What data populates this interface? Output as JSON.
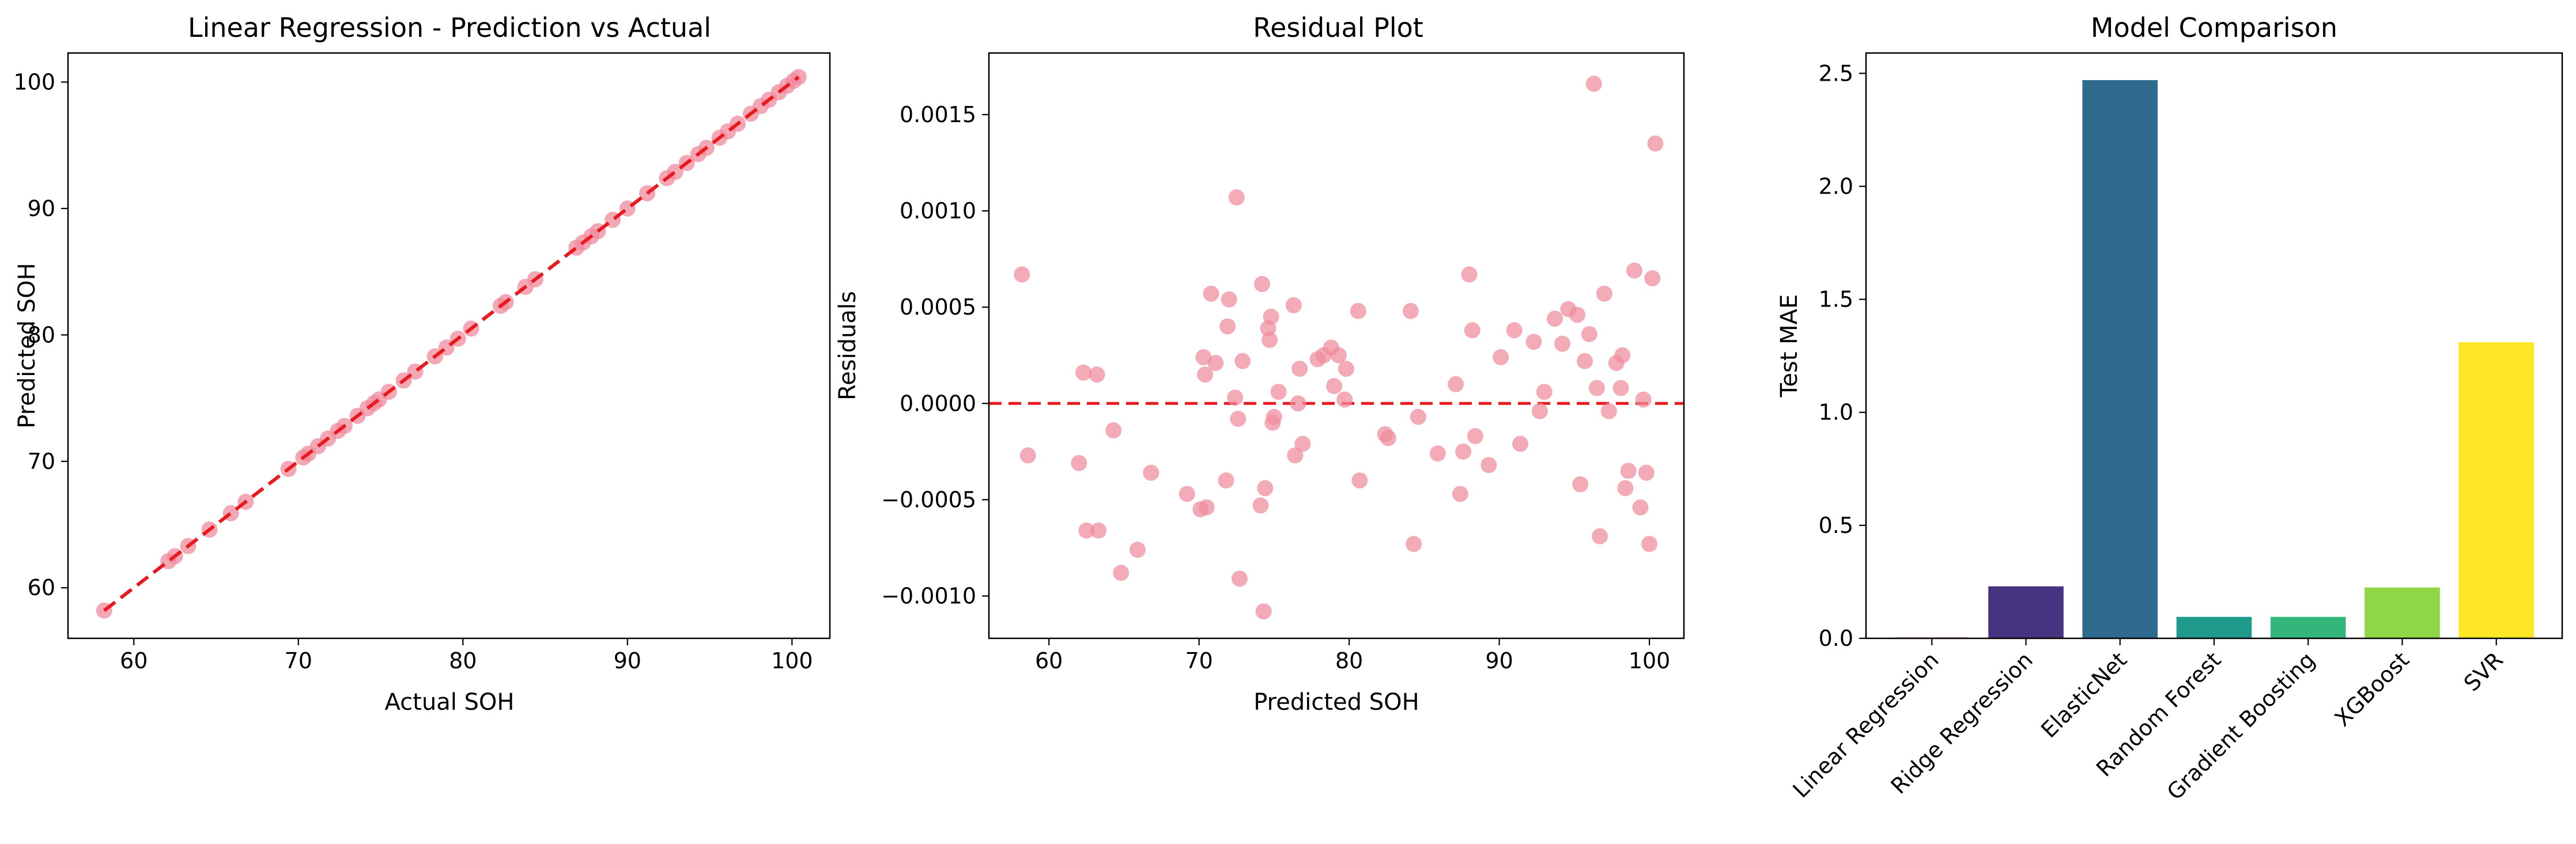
{
  "chart_data": [
    {
      "type": "scatter",
      "title": "Linear Regression - Prediction vs Actual",
      "xlabel": "Actual SOH",
      "ylabel": "Predicted SOH",
      "xlim": [
        56,
        102.3
      ],
      "ylim": [
        56,
        102.3
      ],
      "xticks": [
        60,
        70,
        80,
        90,
        100
      ],
      "yticks": [
        60,
        70,
        80,
        90,
        100
      ],
      "tick_labels_x": [
        "60",
        "70",
        "80",
        "90",
        "100"
      ],
      "tick_labels_y": [
        "60",
        "70",
        "80",
        "90",
        "100"
      ],
      "reference_line": {
        "from": [
          58.2,
          58.2
        ],
        "to": [
          100.4,
          100.4
        ],
        "style": "dashed",
        "color": "#e8191f"
      },
      "marker_color": "#f08a9c",
      "series": [
        {
          "x": [
            58.2,
            62.1,
            62.5,
            63.3,
            64.6,
            65.9,
            66.8,
            69.4,
            70.3,
            70.6,
            71.2,
            71.8,
            72.4,
            72.8,
            73.6,
            74.2,
            74.6,
            74.9,
            75.5,
            76.4,
            77.1,
            78.3,
            79.0,
            79.7,
            80.5,
            82.3,
            82.6,
            83.8,
            84.4,
            86.9,
            87.3,
            87.8,
            88.2,
            89.1,
            90.0,
            91.2,
            92.4,
            92.9,
            93.6,
            94.3,
            94.8,
            95.6,
            96.1,
            96.7,
            97.5,
            98.1,
            98.6,
            99.2,
            99.7,
            100.1,
            100.4
          ],
          "y": [
            58.2,
            62.1,
            62.5,
            63.3,
            64.6,
            65.9,
            66.8,
            69.4,
            70.3,
            70.6,
            71.2,
            71.8,
            72.4,
            72.8,
            73.6,
            74.2,
            74.6,
            74.9,
            75.5,
            76.4,
            77.1,
            78.3,
            79.0,
            79.7,
            80.5,
            82.3,
            82.6,
            83.8,
            84.4,
            86.9,
            87.3,
            87.8,
            88.2,
            89.1,
            90.0,
            91.2,
            92.4,
            92.9,
            93.6,
            94.3,
            94.8,
            95.6,
            96.1,
            96.7,
            97.5,
            98.1,
            98.6,
            99.2,
            99.7,
            100.1,
            100.4
          ]
        }
      ]
    },
    {
      "type": "scatter",
      "title": "Residual Plot",
      "xlabel": "Predicted SOH",
      "ylabel": "Residuals",
      "xlim": [
        56,
        102.3
      ],
      "ylim": [
        -0.00122,
        0.00182
      ],
      "xticks": [
        60,
        70,
        80,
        90,
        100
      ],
      "yticks": [
        -0.001,
        -0.0005,
        0.0,
        0.0005,
        0.001,
        0.0015
      ],
      "tick_labels_x": [
        "60",
        "70",
        "80",
        "90",
        "100"
      ],
      "tick_labels_y": [
        "−0.0010",
        "−0.0005",
        "0.0000",
        "0.0005",
        "0.0010",
        "0.0015"
      ],
      "reference_line": {
        "y": 0,
        "style": "dashed",
        "color": "#e8191f"
      },
      "marker_color": "#f08a9c",
      "series": [
        {
          "x": [
            58.2,
            58.6,
            62.0,
            62.3,
            62.5,
            63.2,
            63.3,
            64.3,
            64.8,
            65.9,
            66.8,
            69.2,
            70.1,
            70.3,
            70.4,
            70.5,
            70.8,
            71.1,
            71.8,
            71.9,
            72.0,
            72.4,
            72.5,
            72.6,
            72.7,
            72.9,
            74.1,
            74.2,
            74.3,
            74.4,
            74.6,
            74.7,
            74.8,
            74.9,
            75.0,
            75.3,
            76.3,
            76.4,
            76.6,
            76.7,
            76.9,
            77.9,
            78.3,
            78.8,
            79.0,
            79.3,
            79.7,
            79.8,
            80.6,
            80.7,
            82.4,
            82.6,
            84.1,
            84.3,
            84.6,
            85.9,
            87.1,
            87.4,
            87.6,
            88.0,
            88.2,
            88.4,
            89.3,
            90.1,
            91.0,
            91.4,
            92.3,
            92.7,
            93.0,
            93.7,
            94.2,
            94.6,
            95.2,
            95.4,
            95.7,
            96.0,
            96.3,
            96.5,
            96.7,
            97.0,
            97.3,
            97.8,
            98.1,
            98.2,
            98.4,
            98.6,
            99.0,
            99.4,
            99.6,
            99.8,
            100.0,
            100.2,
            100.4
          ],
          "y": [
            0.00067,
            -0.00027,
            -0.00031,
            0.00016,
            -0.00066,
            0.00015,
            -0.00066,
            -0.00014,
            -0.00088,
            -0.00076,
            -0.00036,
            -0.00047,
            -0.00055,
            0.00024,
            0.00015,
            -0.00054,
            0.00057,
            0.00021,
            -0.0004,
            0.0004,
            0.00054,
            3e-05,
            0.00107,
            -8e-05,
            -0.00091,
            0.00022,
            -0.00053,
            0.00062,
            -0.00108,
            -0.00044,
            0.00039,
            0.00033,
            0.00045,
            -0.0001,
            -7e-05,
            6e-05,
            0.00051,
            -0.00027,
            0.0,
            0.00018,
            -0.00021,
            0.00023,
            0.00025,
            0.00029,
            9e-05,
            0.00025,
            2e-05,
            0.00018,
            0.00048,
            -0.0004,
            -0.00016,
            -0.00018,
            0.00048,
            -0.00073,
            -7e-05,
            -0.00026,
            0.0001,
            -0.00047,
            -0.00025,
            0.00067,
            0.00038,
            -0.00017,
            -0.00032,
            0.00024,
            0.00038,
            -0.00021,
            0.00032,
            -4e-05,
            6e-05,
            0.00044,
            0.00031,
            0.00049,
            0.00046,
            -0.00042,
            0.00022,
            0.00036,
            0.00166,
            8e-05,
            -0.00069,
            0.00057,
            -4e-05,
            0.00021,
            8e-05,
            0.00025,
            -0.00044,
            -0.00035,
            0.00069,
            -0.00054,
            2e-05,
            -0.00036,
            -0.00073,
            0.00065,
            0.00135
          ]
        }
      ]
    },
    {
      "type": "bar",
      "title": "Model Comparison",
      "xlabel": "",
      "ylabel": "Test MAE",
      "ylim": [
        0,
        2.59
      ],
      "yticks": [
        0,
        0.5,
        1.0,
        1.5,
        2.0,
        2.5
      ],
      "tick_labels_y": [
        "0.0",
        "0.5",
        "1.0",
        "1.5",
        "2.0",
        "2.5"
      ],
      "categories": [
        "Linear Regression",
        "Ridge Regression",
        "ElasticNet",
        "Random Forest",
        "Gradient Boosting",
        "XGBoost",
        "SVR"
      ],
      "values": [
        0.0005,
        0.23,
        2.47,
        0.095,
        0.095,
        0.225,
        1.31
      ],
      "colors": [
        "#d62728",
        "#463480",
        "#306a8e",
        "#1f9a8a",
        "#32b67a",
        "#8fd744",
        "#fde725"
      ]
    }
  ]
}
